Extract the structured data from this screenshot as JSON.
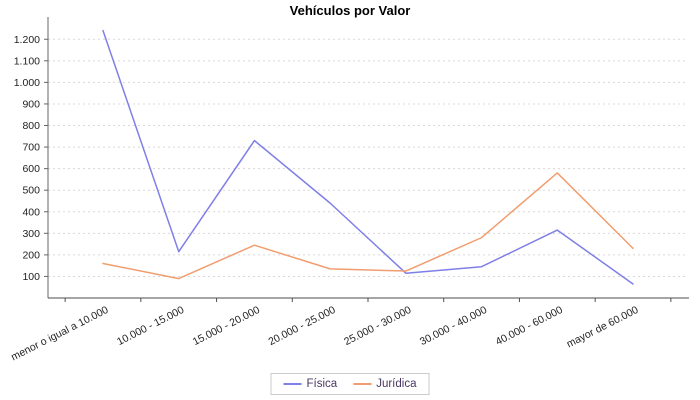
{
  "title": "Vehículos por Valor",
  "colors": {
    "background": "#ffffff",
    "grid": "#d8d8d8",
    "axis": "#666666",
    "tick_text": "#222222",
    "title_text": "#000000",
    "legend_text": "#483863",
    "legend_border": "#cccccc"
  },
  "chart_data": {
    "type": "line",
    "title": "Vehículos por Valor",
    "xlabel": "",
    "ylabel": "",
    "categories": [
      "menor o igual a 10.000",
      "10.000 - 15.000",
      "15.000 - 20.000",
      "20.000 - 25.000",
      "25.000 - 30.000",
      "30.000 - 40.000",
      "40.000 - 60.000",
      "mayor de 60.000"
    ],
    "series": [
      {
        "key": "fisica",
        "name": "Física",
        "color": "#7f7fe8",
        "values": [
          1240,
          215,
          730,
          440,
          115,
          145,
          315,
          65
        ]
      },
      {
        "key": "juridica",
        "name": "Jurídica",
        "color": "#f19d6f",
        "values": [
          160,
          90,
          245,
          135,
          125,
          280,
          580,
          230
        ]
      }
    ],
    "ylim": [
      0,
      1280
    ],
    "ytick_step": 100,
    "ytick_labels": [
      "100",
      "200",
      "300",
      "400",
      "500",
      "600",
      "700",
      "800",
      "900",
      "1.000",
      "1.100",
      "1.200"
    ],
    "grid": "horizontal-dashed",
    "legend_position": "bottom",
    "x_label_rotation_deg": -27
  }
}
